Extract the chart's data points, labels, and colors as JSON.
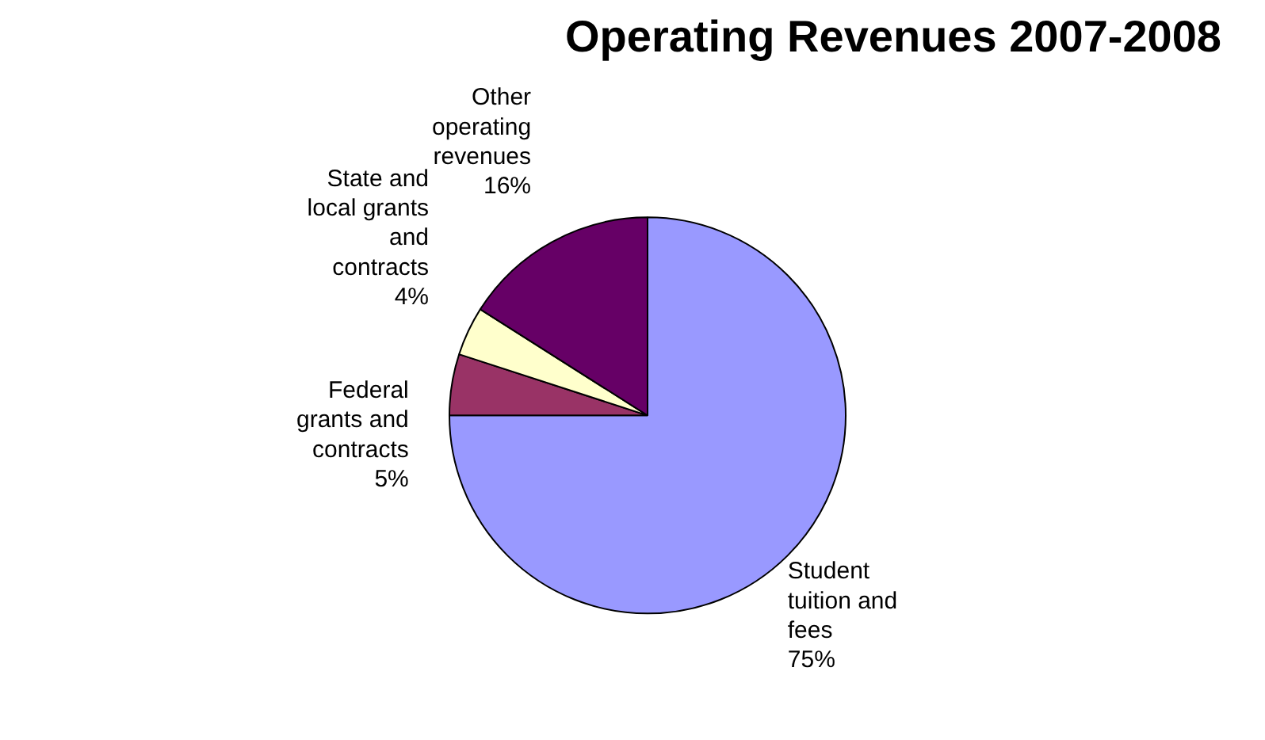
{
  "chart_data": {
    "type": "pie",
    "title": "Operating Revenues 2007-2008",
    "categories": [
      "Student tuition and fees",
      "Federal grants and contracts",
      "State and local grants and contracts",
      "Other operating revenues"
    ],
    "values": [
      75,
      5,
      4,
      16
    ],
    "colors": [
      "#9999ff",
      "#993366",
      "#ffffcc",
      "#660066"
    ],
    "value_labels": [
      "75%",
      "5%",
      "4%",
      "16%"
    ]
  }
}
